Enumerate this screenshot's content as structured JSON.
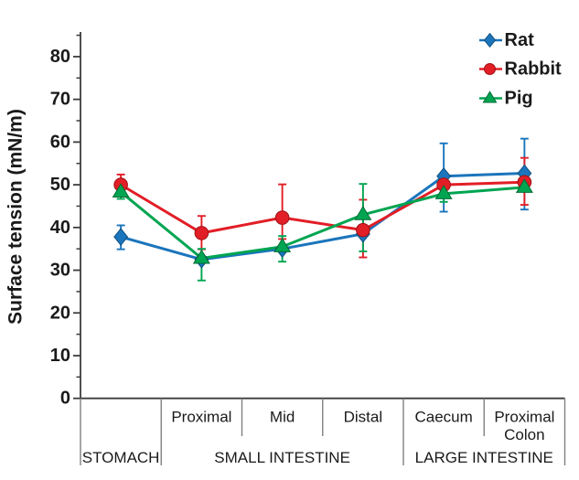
{
  "figure": {
    "background": "#ffffff",
    "axis_color": "#3c3c3c",
    "divider_color": "#7f7f7f",
    "text_color": "#1a1a1a"
  },
  "chart_data": {
    "type": "line",
    "title": "",
    "xlabel": "",
    "ylabel": "Surface tension (mN/m)",
    "ylim": [
      0,
      85
    ],
    "yticks_labeled": [
      0,
      10,
      20,
      30,
      40,
      50,
      60,
      70,
      80
    ],
    "minor_ytick_interval": 5,
    "grid": false,
    "legend_position": "top-right",
    "legend": [
      "Rat",
      "Rabbit",
      "Pig"
    ],
    "categories": [
      "Stomach",
      "Small intestine Proximal",
      "Small intestine Mid",
      "Small intestine Distal",
      "Large intestine Caecum",
      "Large intestine Proximal Colon"
    ],
    "x_segment_labels": [
      "",
      "Proximal",
      "Mid",
      "Distal",
      "Caecum",
      "Proximal Colon"
    ],
    "x_group_labels": [
      {
        "label": "STOMACH",
        "start": 0,
        "end": 1
      },
      {
        "label": "SMALL INTESTINE",
        "start": 1,
        "end": 4
      },
      {
        "label": "LARGE INTESTINE",
        "start": 4,
        "end": 6
      }
    ],
    "series": [
      {
        "name": "Rat",
        "color": "#1b75bc",
        "edge": "#10507f",
        "marker": "diamond",
        "values": [
          37.8,
          32.5,
          35.0,
          38.5,
          52.0,
          52.7
        ],
        "err_up": [
          2.7,
          0,
          0,
          0,
          7.7,
          8.1
        ],
        "err_down": [
          2.9,
          0,
          0,
          0,
          8.3,
          8.5
        ]
      },
      {
        "name": "Rabbit",
        "color": "#e21e26",
        "edge": "#9e1216",
        "marker": "circle",
        "values": [
          50.0,
          38.7,
          42.3,
          39.4,
          50.0,
          50.6
        ],
        "err_up": [
          2.4,
          4.0,
          7.8,
          7.1,
          0,
          5.7
        ],
        "err_down": [
          2.0,
          3.8,
          5.0,
          6.4,
          0,
          5.3
        ]
      },
      {
        "name": "Pig",
        "color": "#00a551",
        "edge": "#006b34",
        "marker": "triangle",
        "values": [
          48.3,
          32.8,
          35.5,
          43.0,
          47.9,
          49.4
        ],
        "err_up": [
          1.6,
          2.2,
          2.5,
          7.2,
          0,
          0
        ],
        "err_down": [
          1.6,
          5.2,
          3.5,
          8.6,
          1.9,
          0
        ]
      }
    ]
  }
}
